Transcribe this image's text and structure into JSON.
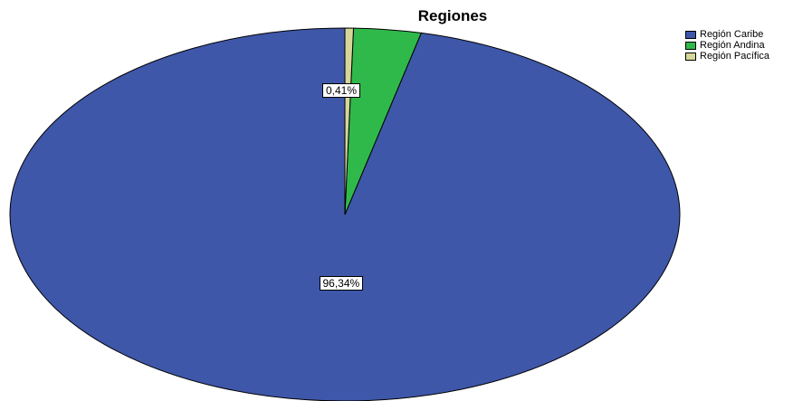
{
  "chart_data": {
    "type": "pie",
    "title": "Regiones",
    "categories": [
      "Región Caribe",
      "Región Andina",
      "Región Pacífica"
    ],
    "values": [
      96.34,
      3.25,
      0.41
    ],
    "data_labels": [
      "96,34%",
      "",
      "0,41%"
    ],
    "colors": [
      "#3f57a9",
      "#30b94b",
      "#d6d69a"
    ],
    "legend_placement": "top-right"
  }
}
